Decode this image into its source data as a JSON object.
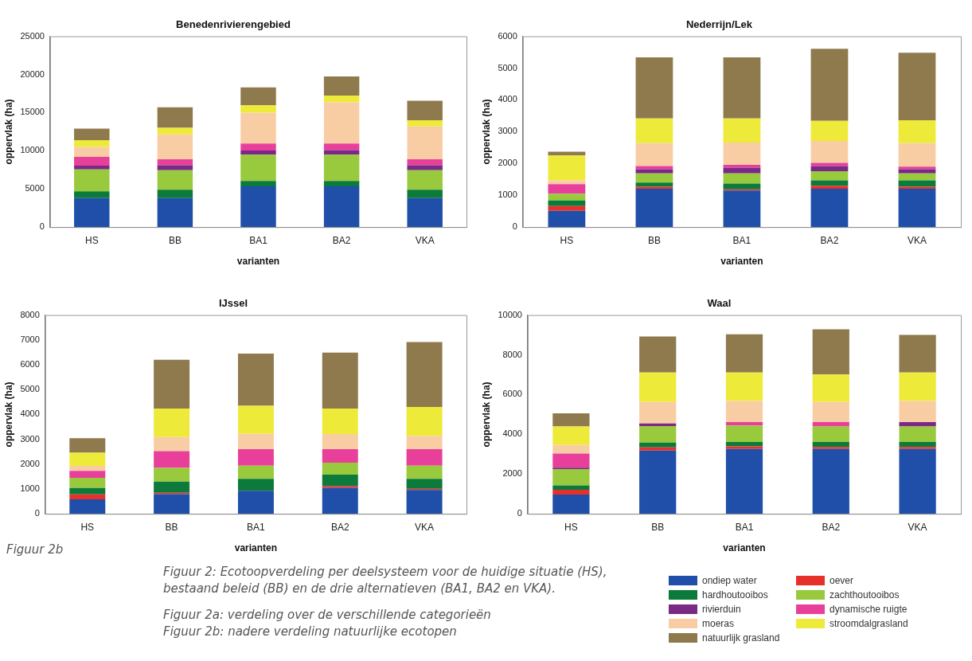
{
  "chart_data": [
    {
      "type": "bar",
      "stacked": true,
      "title": "Benedenrivierengebied",
      "xlabel": "varianten",
      "ylabel": "oppervlak (ha)",
      "categories": [
        "HS",
        "BB",
        "BA1",
        "BA2",
        "VKA"
      ],
      "ylim": [
        0,
        25000
      ],
      "yticks": [
        0,
        5000,
        10000,
        15000,
        20000,
        25000
      ],
      "legend": "bottom right",
      "series": [
        {
          "name": "ondiep water",
          "color": "#1f4fa8",
          "values": [
            3800,
            3800,
            5350,
            5350,
            3800
          ]
        },
        {
          "name": "oever",
          "color": "#e8302a",
          "values": [
            0,
            0,
            0,
            0,
            0
          ]
        },
        {
          "name": "hardhoutooibos",
          "color": "#0b7a3a",
          "values": [
            900,
            1100,
            700,
            700,
            1100
          ]
        },
        {
          "name": "zachthoutooibos",
          "color": "#99c93c",
          "values": [
            2850,
            2550,
            3450,
            3450,
            2550
          ]
        },
        {
          "name": "rivierduin",
          "color": "#7a2a86",
          "values": [
            500,
            650,
            550,
            600,
            650
          ]
        },
        {
          "name": "dynamische ruigte",
          "color": "#e8409a",
          "values": [
            1150,
            800,
            900,
            850,
            800
          ]
        },
        {
          "name": "moeras",
          "color": "#f9cda4",
          "values": [
            1300,
            3250,
            4050,
            5400,
            4300
          ]
        },
        {
          "name": "stroomdalgrasland",
          "color": "#eeea3a",
          "values": [
            900,
            850,
            950,
            900,
            800
          ]
        },
        {
          "name": "natuurlijk grasland",
          "color": "#8f7a4e",
          "values": [
            1500,
            2700,
            2350,
            2500,
            2550
          ]
        }
      ]
    },
    {
      "type": "bar",
      "stacked": true,
      "title": "Nederrijn/Lek",
      "xlabel": "varianten",
      "ylabel": "oppervlak (ha)",
      "categories": [
        "HS",
        "BB",
        "BA1",
        "BA2",
        "VKA"
      ],
      "ylim": [
        0,
        6000
      ],
      "yticks": [
        0,
        1000,
        2000,
        3000,
        4000,
        5000,
        6000
      ],
      "series": [
        {
          "color": "#1f4fa8",
          "values": [
            510,
            1210,
            1150,
            1210,
            1210
          ]
        },
        {
          "color": "#e8302a",
          "values": [
            150,
            60,
            40,
            90,
            60
          ]
        },
        {
          "color": "#0b7a3a",
          "values": [
            180,
            130,
            180,
            170,
            200
          ]
        },
        {
          "color": "#99c93c",
          "values": [
            210,
            290,
            320,
            290,
            220
          ]
        },
        {
          "color": "#7a2a86",
          "values": [
            0,
            130,
            180,
            160,
            130
          ]
        },
        {
          "color": "#e8409a",
          "values": [
            300,
            100,
            90,
            100,
            80
          ]
        },
        {
          "color": "#f9cda4",
          "values": [
            120,
            720,
            700,
            690,
            740
          ]
        },
        {
          "color": "#eeea3a",
          "values": [
            780,
            780,
            760,
            630,
            720
          ]
        },
        {
          "color": "#8f7a4e",
          "values": [
            120,
            1920,
            1920,
            2270,
            2120
          ]
        }
      ]
    },
    {
      "type": "bar",
      "stacked": true,
      "title": "IJssel",
      "xlabel": "varianten",
      "ylabel": "oppervlak (ha)",
      "categories": [
        "HS",
        "BB",
        "BA1",
        "BA2",
        "VKA"
      ],
      "ylim": [
        0,
        8000
      ],
      "yticks": [
        0,
        1000,
        2000,
        3000,
        4000,
        5000,
        6000,
        7000,
        8000
      ],
      "annotations": [
        "Figuur 2b"
      ],
      "series": [
        {
          "color": "#1f4fa8",
          "values": [
            580,
            790,
            930,
            1050,
            960
          ]
        },
        {
          "color": "#e8302a",
          "values": [
            200,
            60,
            0,
            70,
            50
          ]
        },
        {
          "color": "#0b7a3a",
          "values": [
            260,
            450,
            480,
            460,
            400
          ]
        },
        {
          "color": "#99c93c",
          "values": [
            410,
            550,
            530,
            480,
            530
          ]
        },
        {
          "color": "#7a2a86",
          "values": [
            0,
            0,
            0,
            0,
            0
          ]
        },
        {
          "color": "#e8409a",
          "values": [
            280,
            670,
            660,
            540,
            660
          ]
        },
        {
          "color": "#f9cda4",
          "values": [
            200,
            570,
            620,
            610,
            540
          ]
        },
        {
          "color": "#eeea3a",
          "values": [
            530,
            1150,
            1130,
            1030,
            1160
          ]
        },
        {
          "color": "#8f7a4e",
          "values": [
            580,
            1960,
            2100,
            2250,
            2610
          ]
        }
      ]
    },
    {
      "type": "bar",
      "stacked": true,
      "title": "Waal",
      "xlabel": "varianten",
      "ylabel": "oppervlak (ha)",
      "categories": [
        "HS",
        "BB",
        "BA1",
        "BA2",
        "VKA"
      ],
      "ylim": [
        0,
        10000
      ],
      "yticks": [
        0,
        2000,
        4000,
        6000,
        8000,
        10000
      ],
      "annotations": [
        "Figuur 2: Ecotoopverdeling per deelsysteem voor de huidige situatie (HS), bestaand beleid (BB) en de drie alternatieven (BA1, BA2 en VKA).",
        "Figuur 2a: verdeling over de verschillende categorieën",
        "Figuur 2b: nadere verdeling natuurlijke ecotopen"
      ],
      "series": [
        {
          "color": "#1f4fa8",
          "values": [
            970,
            3180,
            3260,
            3260,
            3260
          ]
        },
        {
          "color": "#e8302a",
          "values": [
            240,
            160,
            130,
            100,
            100
          ]
        },
        {
          "color": "#0b7a3a",
          "values": [
            220,
            240,
            220,
            250,
            250
          ]
        },
        {
          "color": "#99c93c",
          "values": [
            820,
            840,
            840,
            790,
            790
          ]
        },
        {
          "color": "#7a2a86",
          "values": [
            70,
            130,
            0,
            0,
            220
          ]
        },
        {
          "color": "#e8409a",
          "values": [
            710,
            0,
            170,
            220,
            0
          ]
        },
        {
          "color": "#f9cda4",
          "values": [
            430,
            1080,
            1060,
            1010,
            1060
          ]
        },
        {
          "color": "#eeea3a",
          "values": [
            940,
            1480,
            1430,
            1380,
            1430
          ]
        },
        {
          "color": "#8f7a4e",
          "values": [
            660,
            1810,
            1920,
            2270,
            1890
          ]
        }
      ]
    }
  ]
}
